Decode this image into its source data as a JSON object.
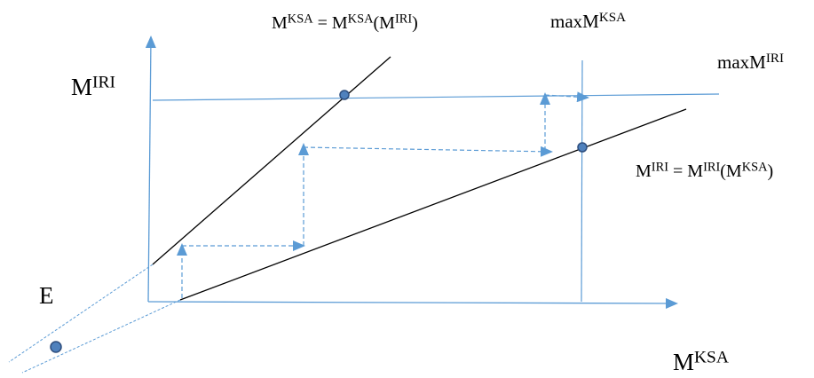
{
  "labels": {
    "y_axis": {
      "base": "M",
      "sup": "IRI"
    },
    "x_axis": {
      "base": "M",
      "sup": "KSA"
    },
    "e_point": "E",
    "max_ksa": {
      "prefix": "maxM",
      "sup": "KSA"
    },
    "max_iri": {
      "prefix": "maxM",
      "sup": "IRI"
    },
    "ksa_curve": {
      "l_base": "M",
      "l_sup": "KSA",
      "eq": " = ",
      "r_base": "M",
      "r_sup": "KSA",
      "open": "(",
      "in_base": "M",
      "in_sup": "IRI",
      "close": ")"
    },
    "iri_curve": {
      "l_base": "M",
      "l_sup": "IRI",
      "eq": " = ",
      "r_base": "M",
      "r_sup": "IRI",
      "open": "(",
      "in_base": "M",
      "in_sup": "KSA",
      "close": ")"
    }
  },
  "colors": {
    "axis": "#5b9bd5",
    "curve": "#000000",
    "dashed": "#5b9bd5",
    "point_fill": "#4f81bd",
    "point_stroke": "#2e4e7e"
  }
}
